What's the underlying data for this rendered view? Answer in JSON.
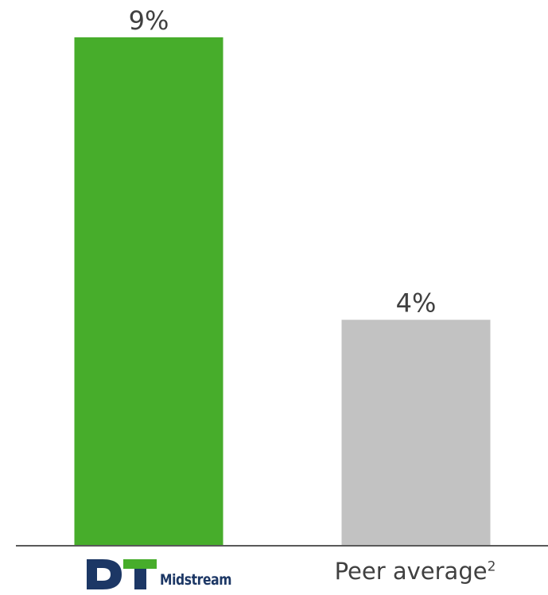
{
  "chart_data": {
    "type": "bar",
    "categories": [
      "DT Midstream",
      "Peer average"
    ],
    "values": [
      9,
      4
    ],
    "value_labels": [
      "9%",
      "4%"
    ],
    "category_footnotes": [
      "",
      "2"
    ],
    "ylim": [
      0,
      10
    ],
    "grid": false,
    "colors": [
      "#47ad2b",
      "#c2c2c2"
    ],
    "axis_color": "#595959"
  },
  "logo": {
    "wordmark": "Midstream",
    "letters": "DT",
    "colors": {
      "dark": "#1c3765",
      "green": "#47ad2b"
    }
  }
}
